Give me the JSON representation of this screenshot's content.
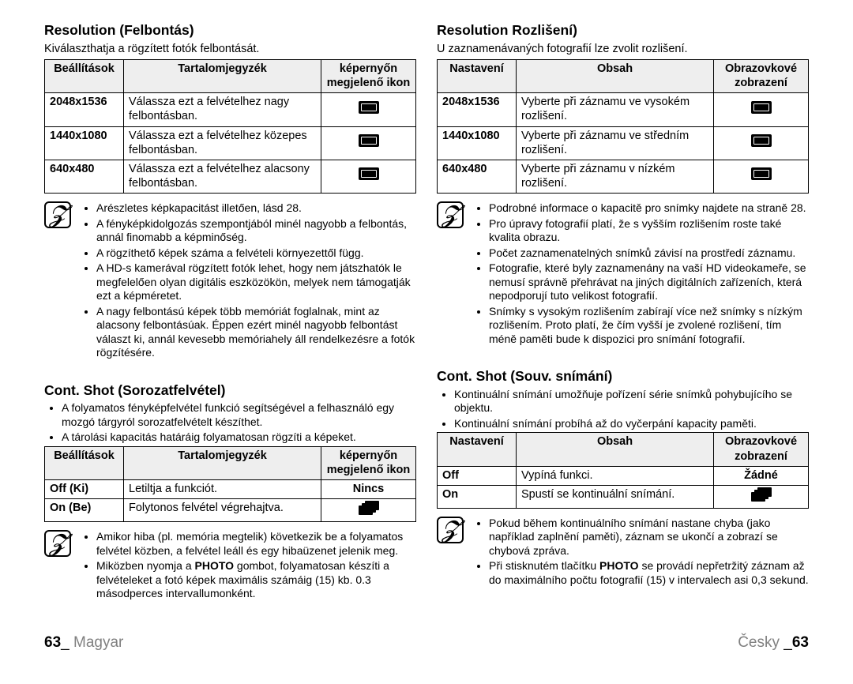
{
  "left": {
    "section1": {
      "title": "Resolution (Felbontás)",
      "intro": "Kiválaszthatja a rögzített fotók felbontását.",
      "table": {
        "headers": {
          "settings": "Beállítások",
          "contents": "Tartalomjegyzék",
          "icon": "képernyőn megjelenő ikon"
        },
        "rows": [
          {
            "setting": "2048x1536",
            "content": "Válassza ezt a felvételhez nagy felbontásban."
          },
          {
            "setting": "1440x1080",
            "content": "Válassza ezt a felvételhez közepes felbontásban."
          },
          {
            "setting": "640x480",
            "content": "Válassza ezt a felvételhez alacsony felbontásban."
          }
        ]
      },
      "notes": [
        "Arészletes képkapacitást illetően, lásd 28.",
        "A fényképkidolgozás szempontjából minél nagyobb a felbontás, annál finomabb a képminőség.",
        "A rögzíthető képek száma a felvételi környezettől függ.",
        "A HD-s kamerával rögzített fotók lehet, hogy nem játszhatók le megfelelően olyan digitális eszközökön, melyek nem támogatják ezt a képméretet.",
        "A nagy felbontású képek több memóriát foglalnak, mint az alacsony felbontásúak. Éppen ezért minél nagyobb felbontást választ ki, annál kevesebb memóriahely áll rendelkezésre a fotók rögzítésére."
      ]
    },
    "section2": {
      "title": "Cont. Shot (Sorozatfelvétel)",
      "bullets": [
        "A folyamatos fényképfelvétel funkció segítségével a felhasználó egy mozgó tárgyról sorozatfelvételt készíthet.",
        "A tárolási kapacitás határáig folyamatosan rögzíti a képeket."
      ],
      "table": {
        "headers": {
          "settings": "Beállítások",
          "contents": "Tartalomjegyzék",
          "icon": "képernyőn megjelenő ikon"
        },
        "rows": [
          {
            "setting": "Off (Ki)",
            "content": "Letiltja a funkciót.",
            "none": "Nincs"
          },
          {
            "setting": "On (Be)",
            "content": "Folytonos felvétel végrehajtva."
          }
        ]
      },
      "notes": [
        "Amikor hiba (pl. memória megtelik) következik be a folyamatos felvétel közben, a felvétel leáll és egy hibaüzenet jelenik meg.",
        "Miközben nyomja a <b>PHOTO</b> gombot, folyamatosan készíti a felvételeket a fotó képek maximális számáig (15) kb. 0.3 másodperces intervallumonként."
      ]
    },
    "footer": {
      "page": "63",
      "sep": "_ ",
      "lang": "Magyar"
    }
  },
  "right": {
    "section1": {
      "title": "Resolution Rozlišení)",
      "intro": "U zaznamenávaných fotografií lze zvolit rozlišení.",
      "table": {
        "headers": {
          "settings": "Nastavení",
          "contents": "Obsah",
          "icon": "Obrazovkové zobrazení"
        },
        "rows": [
          {
            "setting": "2048x1536",
            "content": "Vyberte při záznamu ve vysokém rozlišení."
          },
          {
            "setting": "1440x1080",
            "content": "Vyberte při záznamu ve středním rozlišení."
          },
          {
            "setting": "640x480",
            "content": "Vyberte při záznamu v nízkém rozlišení."
          }
        ]
      },
      "notes": [
        "Podrobné informace o kapacitě pro snímky najdete na straně 28.",
        "Pro úpravy fotografií platí, že s vyšším rozlišením roste také kvalita obrazu.",
        "Počet zaznamenatelných snímků závisí na prostředí záznamu.",
        "Fotografie, které byly zaznamenány na vaší HD videokameře, se nemusí správně přehrávat na jiných digitálních zařízeních, která nepodporují tuto velikost fotografií.",
        "Snímky s vysokým rozlišením zabírají více než snímky s nízkým rozlišením. Proto platí, že čím vyšší je zvolené rozlišení, tím méně paměti bude k dispozici pro snímání fotografií."
      ]
    },
    "section2": {
      "title": "Cont. Shot (Souv. snímání)",
      "bullets": [
        "Kontinuální snímání umožňuje pořízení série snímků pohybujícího se objektu.",
        "Kontinuální snímání probíhá až do vyčerpání kapacity paměti."
      ],
      "table": {
        "headers": {
          "settings": "Nastavení",
          "contents": "Obsah",
          "icon": "Obrazovkové zobrazení"
        },
        "rows": [
          {
            "setting": "Off",
            "content": "Vypíná funkci.",
            "none": "Žádné"
          },
          {
            "setting": "On",
            "content": "Spustí se kontinuální snímání."
          }
        ]
      },
      "notes": [
        "Pokud během kontinuálního snímání nastane chyba (jako například zaplnění paměti), záznam se ukončí a zobrazí se chybová zpráva.",
        "Při stisknutém tlačítku <b>PHOTO</b> se provádí nepřetržitý záznam až do maximálního počtu fotografií (15) v intervalech asi 0,3 sekund."
      ]
    },
    "footer": {
      "lang": "Česky",
      "sep": " _",
      "page": "63"
    }
  }
}
